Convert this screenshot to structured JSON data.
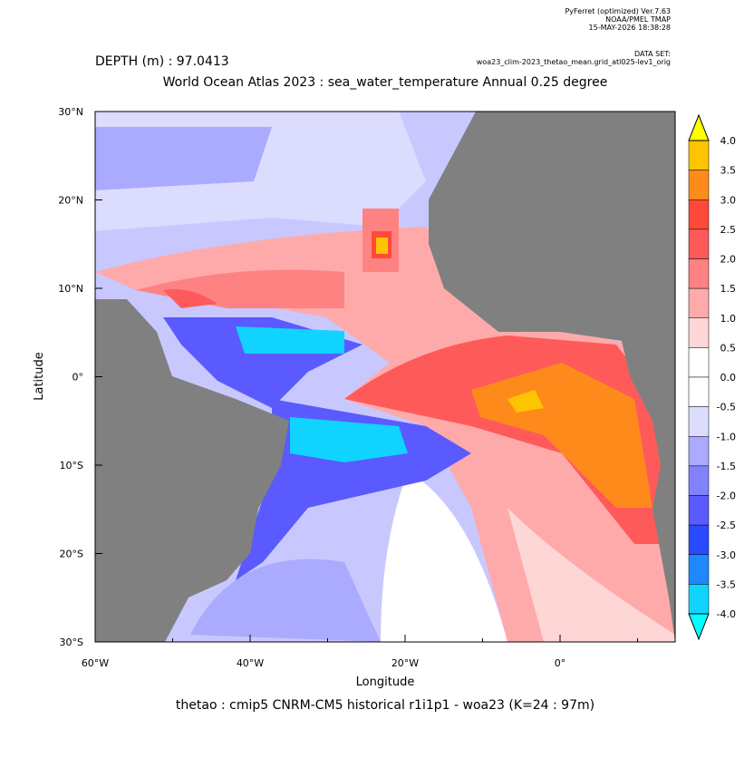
{
  "header": {
    "software": [
      "PyFerret (optimized) Ver.7.63",
      "NOAA/PMEL TMAP",
      "15-MAY-2026 18:38:28"
    ],
    "dataset_label": "DATA SET:",
    "dataset": "woa23_clim-2023_thetao_mean.grid_atl025-lev1_orig",
    "depth": "DEPTH (m) : 97.0413",
    "title": "World Ocean Atlas 2023 : sea_water_temperature Annual  0.25 degree"
  },
  "map": {
    "y_label": "Latitude",
    "x_label": "Longitude",
    "y_ticks": [
      "30°N",
      "20°N",
      "10°N",
      "0°",
      "10°S",
      "20°S",
      "30°S"
    ],
    "x_ticks": [
      "60°W",
      "40°W",
      "20°W",
      "0°"
    ],
    "footer": "thetao : cmip5 CNRM-CM5 historical r1i1p1 - woa23  (K=24 : 97m)"
  },
  "colorbar": {
    "labels": [
      "4.0",
      "3.5",
      "3.0",
      "2.5",
      "2.0",
      "1.5",
      "1.0",
      "0.5",
      "0.0",
      "-0.5",
      "-1.0",
      "-1.5",
      "-2.0",
      "-2.5",
      "-3.0",
      "-3.5",
      "-4.0"
    ],
    "colors": [
      "#ffc400",
      "#ff8a1c",
      "#ff4a3a",
      "#ff5a5a",
      "#ff8282",
      "#ffaaaa",
      "#ffd6d6",
      "#ffffff",
      "#ffffff",
      "#dcdcff",
      "#aaaaff",
      "#8282ff",
      "#5a5aff",
      "#2a4aff",
      "#2088ff",
      "#10d4ff"
    ],
    "over_color": "#ffff00",
    "under_color": "#00ffff"
  }
}
